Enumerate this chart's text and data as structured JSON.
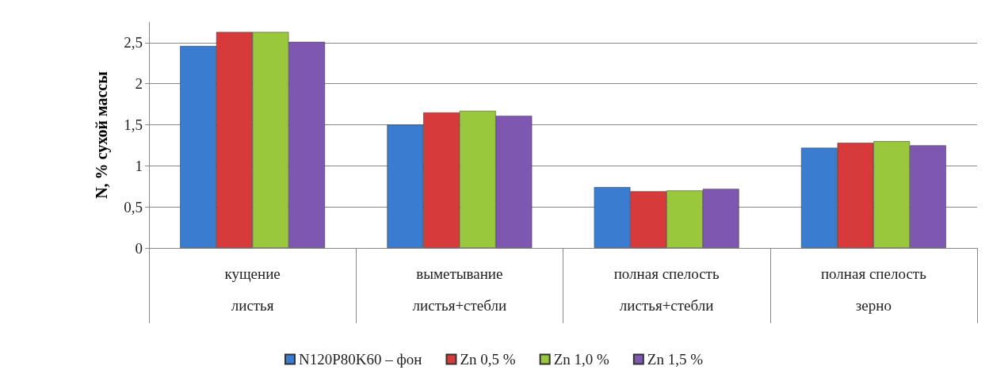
{
  "chart_data": {
    "type": "bar",
    "ylabel": "N, % сухой массы",
    "categories": [
      "кущение\nлистья",
      "выметывание\nлистья+стебли",
      "полная спелость\nлистья+стебли",
      "полная спелость\nзерно"
    ],
    "series": [
      {
        "name": "N120P80K60 – фон",
        "color": "#3a7dd0",
        "values": [
          2.46,
          1.5,
          0.74,
          1.22
        ]
      },
      {
        "name": "Zn 0,5 %",
        "color": "#d63a3a",
        "values": [
          2.63,
          1.65,
          0.69,
          1.28
        ]
      },
      {
        "name": "Zn 1,0 %",
        "color": "#9ac83c",
        "values": [
          2.63,
          1.67,
          0.7,
          1.3
        ]
      },
      {
        "name": "Zn 1,5 %",
        "color": "#7e58b0",
        "values": [
          2.51,
          1.61,
          0.72,
          1.25
        ]
      }
    ],
    "ylim": [
      0,
      2.75
    ],
    "yticks": [
      0,
      {
        "value": 0.5,
        "label": "0,5"
      },
      1,
      {
        "value": 1.5,
        "label": "1,5"
      },
      2,
      {
        "value": 2.5,
        "label": "2,5"
      }
    ],
    "grid": "y",
    "legend": "bottom"
  }
}
